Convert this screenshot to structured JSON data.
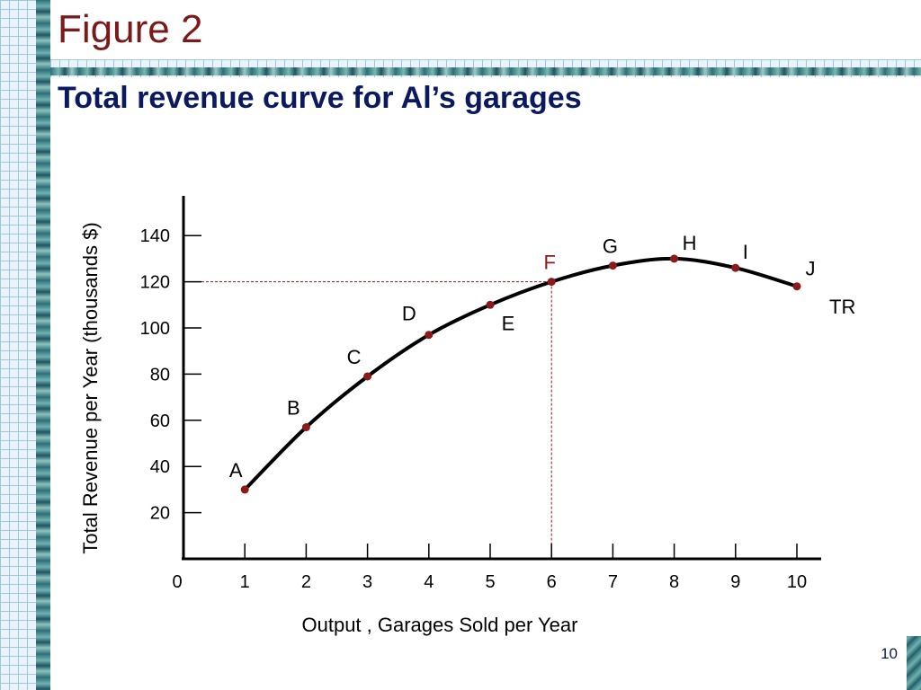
{
  "slide": {
    "title": "Figure 2",
    "subtitle": "Total revenue curve for Al’s garages",
    "page_number": "10"
  },
  "colors": {
    "title": "#7a1a1a",
    "subtitle": "#0b1a5e",
    "curve": "#000000",
    "point": "#8b1a1a",
    "guide": "#8b1a1a",
    "highlight_label": "#8b1a1a"
  },
  "chart_data": {
    "type": "line",
    "title": "",
    "xlabel": "Output , Garages Sold per Year",
    "ylabel": "Total Revenue per Year (thousands $)",
    "xlim": [
      0,
      10
    ],
    "ylim": [
      0,
      140
    ],
    "x_ticks": [
      0,
      1,
      2,
      3,
      4,
      5,
      6,
      7,
      8,
      9,
      10
    ],
    "y_ticks": [
      20,
      40,
      60,
      80,
      100,
      120,
      140
    ],
    "grid": false,
    "series": [
      {
        "name": "TR",
        "points": [
          {
            "label": "A",
            "x": 1,
            "y": 30
          },
          {
            "label": "B",
            "x": 2,
            "y": 57
          },
          {
            "label": "C",
            "x": 3,
            "y": 79
          },
          {
            "label": "D",
            "x": 4,
            "y": 97
          },
          {
            "label": "E",
            "x": 5,
            "y": 110
          },
          {
            "label": "F",
            "x": 6,
            "y": 120
          },
          {
            "label": "G",
            "x": 7,
            "y": 127
          },
          {
            "label": "H",
            "x": 8,
            "y": 130
          },
          {
            "label": "I",
            "x": 9,
            "y": 126
          },
          {
            "label": "J",
            "x": 10,
            "y": 118
          }
        ]
      }
    ],
    "highlight": {
      "label": "F",
      "x": 6,
      "y": 120
    }
  }
}
